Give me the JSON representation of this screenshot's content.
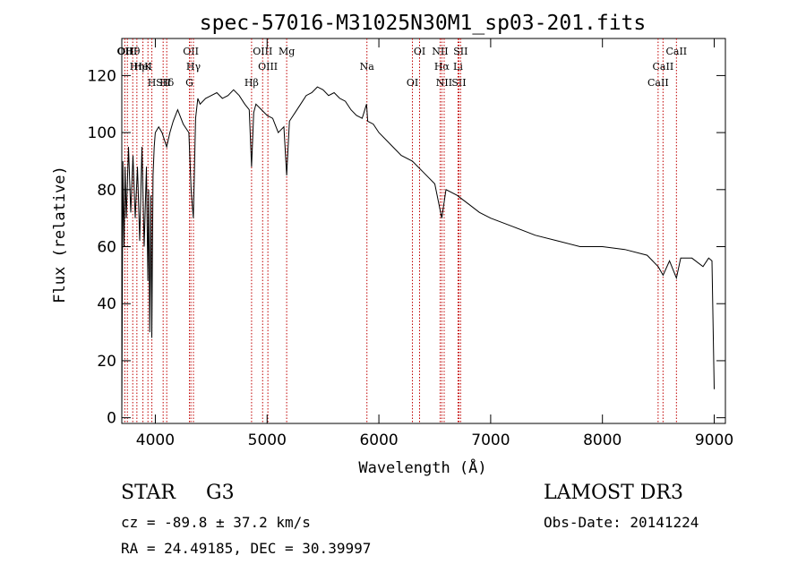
{
  "chart_data": {
    "type": "line",
    "title": "spec-57016-M31025N30M1_sp03-201.fits",
    "xlabel": "Wavelength (Å)",
    "ylabel": "Flux (relative)",
    "xlim": [
      3700,
      9100
    ],
    "ylim": [
      -2,
      133
    ],
    "xticks": [
      4000,
      5000,
      6000,
      7000,
      8000,
      9000
    ],
    "yticks": [
      0,
      20,
      40,
      60,
      80,
      100,
      120
    ],
    "series": [
      {
        "name": "spectrum",
        "x": [
          3700,
          3710,
          3720,
          3730,
          3740,
          3760,
          3780,
          3800,
          3820,
          3840,
          3860,
          3880,
          3900,
          3920,
          3933,
          3940,
          3950,
          3960,
          3968,
          3980,
          3990,
          4000,
          4030,
          4060,
          4101,
          4130,
          4160,
          4200,
          4250,
          4300,
          4320,
          4340,
          4360,
          4380,
          4400,
          4450,
          4500,
          4550,
          4600,
          4650,
          4700,
          4750,
          4800,
          4840,
          4861,
          4880,
          4900,
          4950,
          5000,
          5050,
          5100,
          5150,
          5175,
          5200,
          5250,
          5300,
          5350,
          5400,
          5450,
          5500,
          5550,
          5600,
          5650,
          5700,
          5750,
          5800,
          5850,
          5890,
          5900,
          5950,
          6000,
          6100,
          6200,
          6300,
          6400,
          6500,
          6563,
          6600,
          6700,
          6800,
          6900,
          7000,
          7200,
          7400,
          7600,
          7800,
          8000,
          8200,
          8400,
          8498,
          8542,
          8600,
          8662,
          8700,
          8800,
          8900,
          8950,
          8980,
          9000
        ],
        "y": [
          0,
          90,
          60,
          88,
          70,
          95,
          72,
          92,
          70,
          88,
          62,
          95,
          60,
          88,
          48,
          80,
          30,
          78,
          28,
          85,
          95,
          100,
          102,
          100,
          95,
          100,
          104,
          108,
          103,
          100,
          80,
          70,
          105,
          112,
          110,
          112,
          113,
          114,
          112,
          113,
          115,
          113,
          110,
          108,
          88,
          107,
          110,
          108,
          106,
          105,
          100,
          102,
          85,
          104,
          107,
          110,
          113,
          114,
          116,
          115,
          113,
          114,
          112,
          111,
          108,
          106,
          105,
          110,
          104,
          103,
          100,
          96,
          92,
          90,
          86,
          82,
          70,
          80,
          78,
          75,
          72,
          70,
          67,
          64,
          62,
          60,
          60,
          59,
          57,
          53,
          50,
          55,
          49,
          56,
          56,
          53,
          56,
          55,
          10
        ]
      }
    ],
    "line_markers": [
      {
        "label": "Hθ",
        "wl": 3798
      },
      {
        "label": "K",
        "wl": 3934
      },
      {
        "label": "Hδ",
        "wl": 4102
      },
      {
        "label": "OII",
        "wl": 3727
      },
      {
        "label": "HeI",
        "wl": 3889
      },
      {
        "label": "SII",
        "wl": 4070
      },
      {
        "label": "OIII",
        "wl": 3750
      },
      {
        "label": "Hη",
        "wl": 3835
      },
      {
        "label": "H",
        "wl": 3969
      },
      {
        "label": "OII",
        "wl": 4318
      },
      {
        "label": "Hγ",
        "wl": 4341
      },
      {
        "label": "G",
        "wl": 4305
      },
      {
        "label": "OIII",
        "wl": 4960
      },
      {
        "label": "OIII",
        "wl": 5007
      },
      {
        "label": "Hβ",
        "wl": 4861
      },
      {
        "label": "Mg",
        "wl": 5175
      },
      {
        "label": "Na",
        "wl": 5893
      },
      {
        "label": "OI",
        "wl": 6300
      },
      {
        "label": "OI",
        "wl": 6364
      },
      {
        "label": "Hα",
        "wl": 6563
      },
      {
        "label": "SII",
        "wl": 6716
      },
      {
        "label": "NII",
        "wl": 6548
      },
      {
        "label": "Li",
        "wl": 6708
      },
      {
        "label": "NII",
        "wl": 6584
      },
      {
        "label": "SII",
        "wl": 6731
      },
      {
        "label": "CaII",
        "wl": 8542
      },
      {
        "label": "CaII",
        "wl": 8498
      },
      {
        "label": "CaII",
        "wl": 8662
      }
    ]
  },
  "info": {
    "object_class": "STAR",
    "subclass": "G3",
    "survey": "LAMOST DR3",
    "cz": "cz = -89.8 ± 37.2 km/s",
    "obs_date": "Obs-Date: 20141224",
    "radec": "RA =  24.49185, DEC =  30.39997"
  }
}
